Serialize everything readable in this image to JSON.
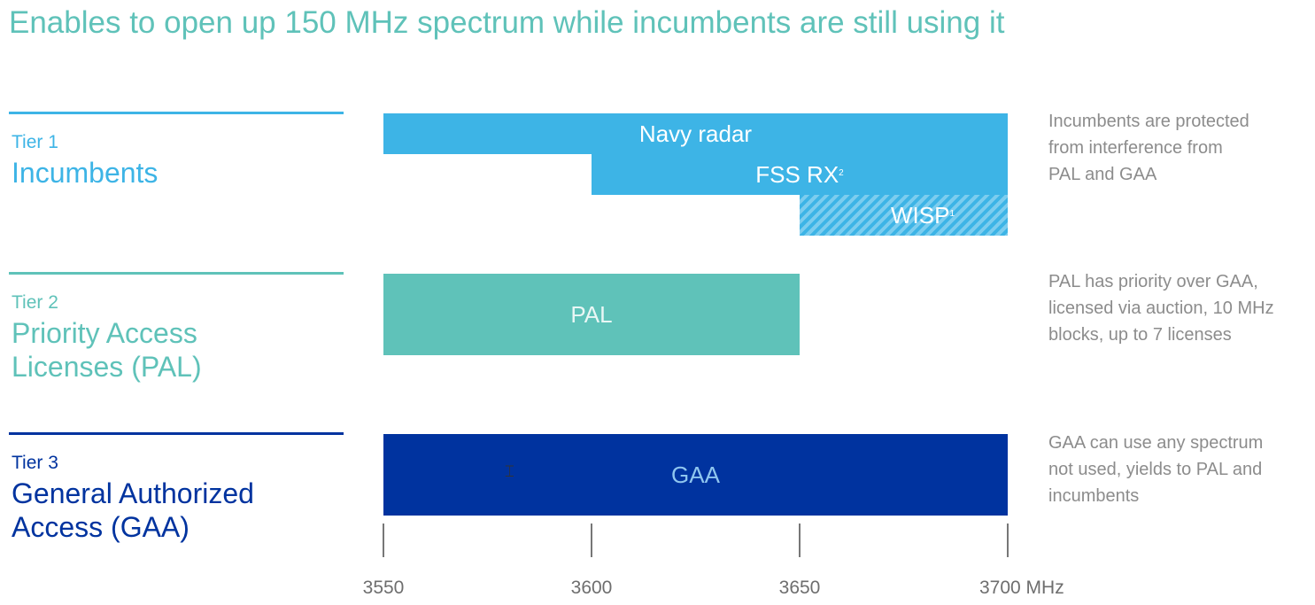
{
  "title": "Enables to open up 150 MHz spectrum while incumbents are still using it",
  "tiers": [
    {
      "label": "Tier 1",
      "name_lines": [
        "Incumbents"
      ],
      "color": "#3db4e6"
    },
    {
      "label": "Tier 2",
      "name_lines": [
        "Priority Access",
        "Licenses (PAL)"
      ],
      "color": "#5fc2b9"
    },
    {
      "label": "Tier 3",
      "name_lines": [
        "General Authorized",
        "Access (GAA)"
      ],
      "color": "#00339f"
    }
  ],
  "bands": {
    "navy_radar": {
      "label": "Navy radar",
      "sup": "",
      "start": 3550,
      "end": 3700
    },
    "fss_rx": {
      "label": "FSS RX",
      "sup": "2",
      "start": 3600,
      "end": 3700
    },
    "wisp": {
      "label": "WISP",
      "sup": "1",
      "start": 3650,
      "end": 3700
    },
    "pal": {
      "label": "PAL",
      "sup": "",
      "start": 3550,
      "end": 3650
    },
    "gaa": {
      "label": "GAA",
      "sup": "",
      "start": 3550,
      "end": 3700
    }
  },
  "descriptions": [
    [
      "Incumbents are protected",
      "from interference from",
      "PAL and GAA"
    ],
    [
      "PAL has priority over GAA,",
      "licensed via auction, 10 MHz",
      "blocks, up to 7 licenses"
    ],
    [
      "GAA can use any spectrum",
      "not used, yields to PAL and",
      "incumbents"
    ]
  ],
  "axis": {
    "ticks": [
      3550,
      3600,
      3650,
      3700
    ],
    "tick_labels": [
      "3550",
      "3600",
      "3650",
      "3700 MHz"
    ],
    "tick_color": "#777777"
  }
}
